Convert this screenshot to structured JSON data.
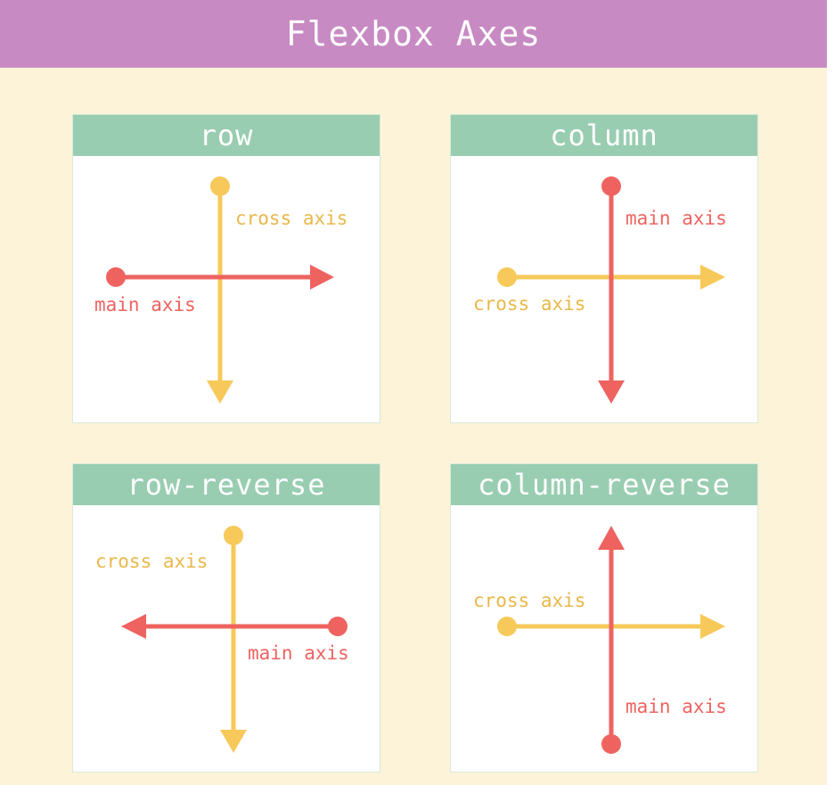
{
  "title": "Flexbox Axes",
  "colors": {
    "title_bar": "#c78ac3",
    "background": "#fdf3d9",
    "panel_header": "#99cdb1",
    "main_axis": "#ee6360",
    "cross_axis": "#f6c95a"
  },
  "panels": [
    {
      "name": "row",
      "main_label": "main axis",
      "cross_label": "cross axis"
    },
    {
      "name": "column",
      "main_label": "main axis",
      "cross_label": "cross axis"
    },
    {
      "name": "row-reverse",
      "main_label": "main axis",
      "cross_label": "cross axis"
    },
    {
      "name": "column-reverse",
      "main_label": "main axis",
      "cross_label": "cross axis"
    }
  ]
}
